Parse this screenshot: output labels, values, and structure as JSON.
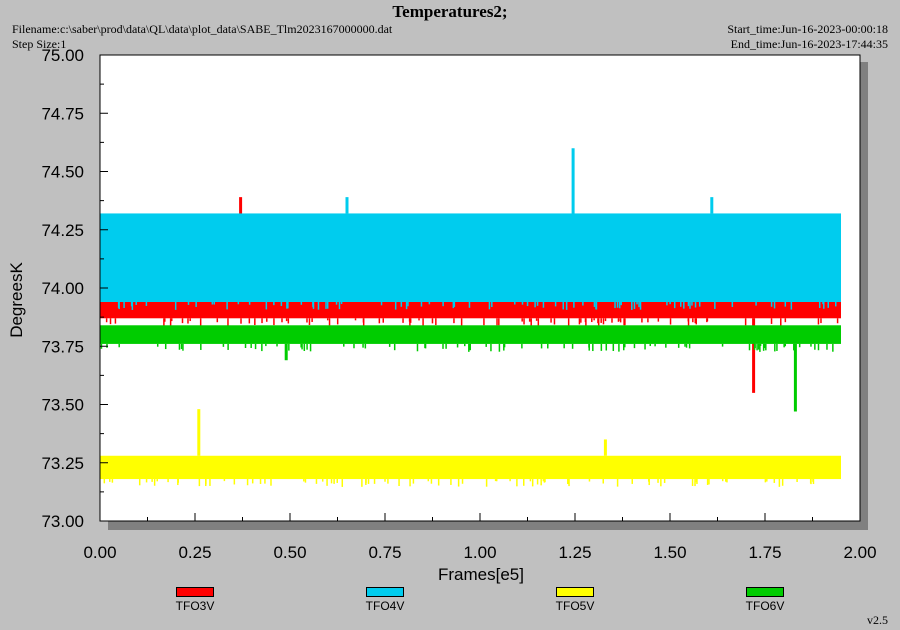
{
  "header": {
    "title": "Temperatures2;",
    "filename": "Filename:c:\\saber\\prod\\data\\QL\\data\\plot_data\\SABE_Tlm2023167000000.dat",
    "step_size": "Step Size:1",
    "start_time": "Start_time:Jun-16-2023-00:00:18",
    "end_time": "End_time:Jun-16-2023-17:44:35"
  },
  "version": "v2.5",
  "chart_data": {
    "type": "line",
    "xlabel": "Frames[e5]",
    "ylabel": "DegreesK",
    "xlim": [
      0,
      2.0
    ],
    "ylim": [
      73.0,
      75.0
    ],
    "x_ticks": [
      "0.00",
      "0.25",
      "0.50",
      "0.75",
      "1.00",
      "1.25",
      "1.50",
      "1.75",
      "2.00"
    ],
    "y_ticks": [
      "73.00",
      "73.25",
      "73.50",
      "73.75",
      "74.00",
      "74.25",
      "74.50",
      "74.75",
      "75.00"
    ],
    "x_data_range": [
      0,
      1.95
    ],
    "grid": false,
    "legend_position": "bottom",
    "series": [
      {
        "name": "TFO3V",
        "color": "#ff0000",
        "typical_values": [
          73.87,
          73.94
        ],
        "spikes": [
          {
            "x": 0.37,
            "y": 74.39
          },
          {
            "x": 1.72,
            "y": 73.55
          }
        ]
      },
      {
        "name": "TFO4V",
        "color": "#00ccee",
        "typical_values": [
          73.94,
          74.32
        ],
        "spikes": [
          {
            "x": 0.65,
            "y": 74.39
          },
          {
            "x": 1.245,
            "y": 74.6
          },
          {
            "x": 1.61,
            "y": 74.39
          }
        ]
      },
      {
        "name": "TFO5V",
        "color": "#ffff00",
        "typical_values": [
          73.18,
          73.28
        ],
        "spikes": [
          {
            "x": 0.26,
            "y": 73.48
          },
          {
            "x": 1.33,
            "y": 73.35
          }
        ]
      },
      {
        "name": "TFO6V",
        "color": "#00cc00",
        "typical_values": [
          73.76,
          73.84
        ],
        "spikes": [
          {
            "x": 1.83,
            "y": 73.47
          },
          {
            "x": 0.49,
            "y": 73.69
          }
        ]
      }
    ]
  }
}
